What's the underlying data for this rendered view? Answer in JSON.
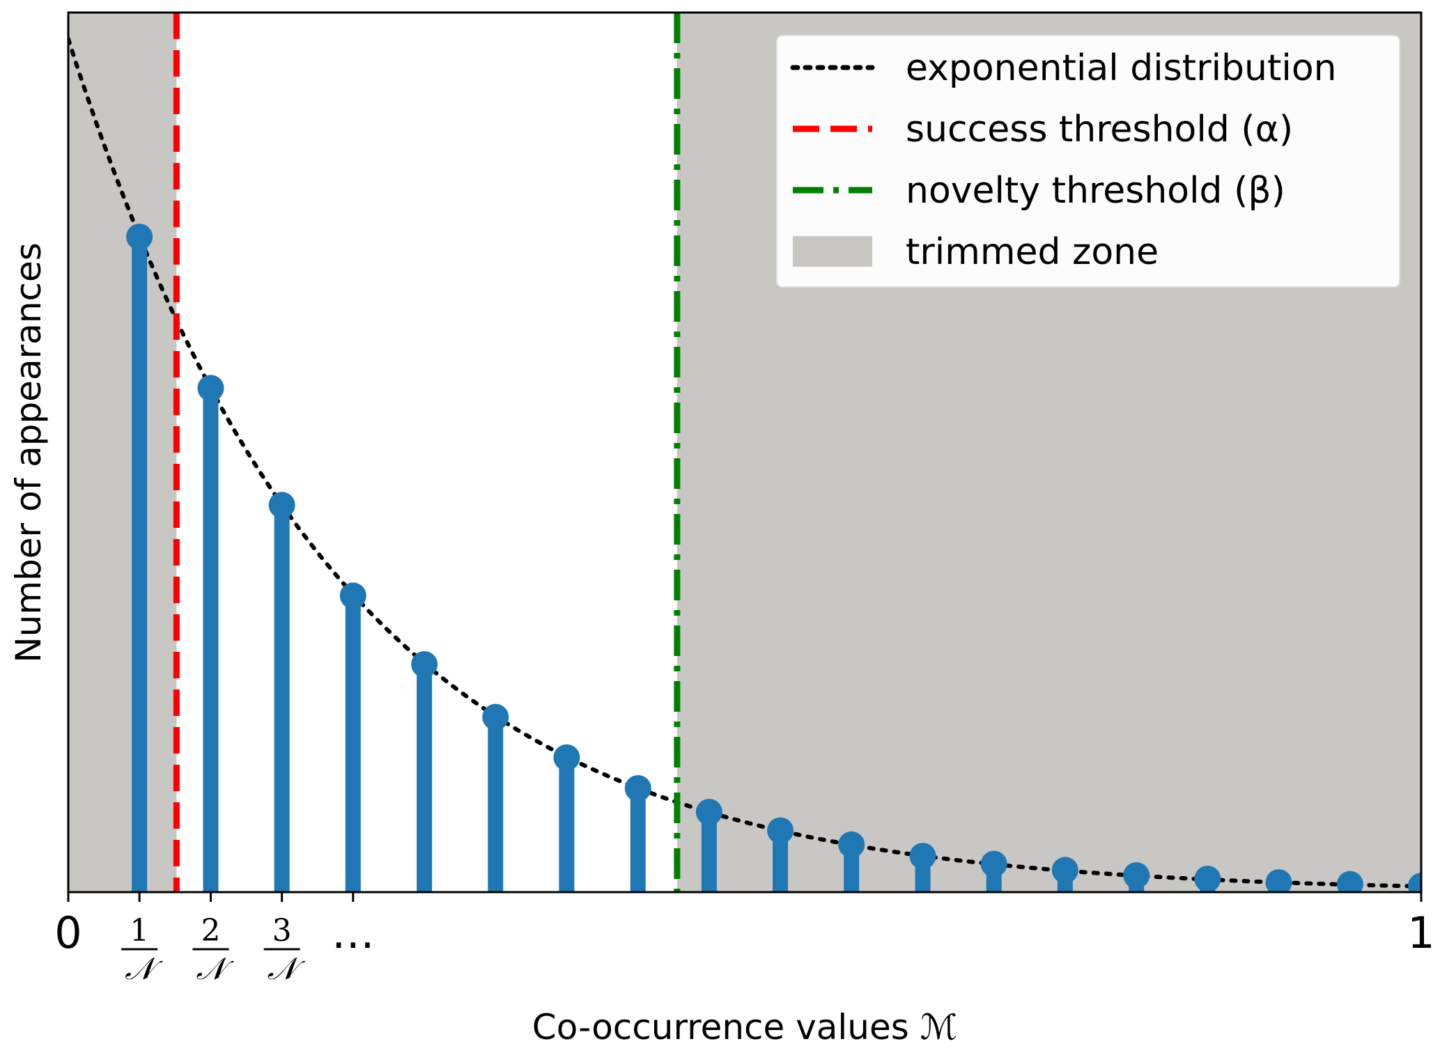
{
  "chart_data": {
    "type": "bar",
    "subtype": "stem",
    "title": "",
    "xlabel": "Co-occurrence values ℳ",
    "ylabel": "Number of appearances",
    "xlim": [
      0,
      1
    ],
    "ylim": [
      0,
      1
    ],
    "y_ticks_visible": false,
    "x_ticks": [
      {
        "value": 0,
        "label": "0",
        "kind": "plain"
      },
      {
        "value": 0.0526,
        "numerator": "1",
        "denominator": "𝒩",
        "kind": "fraction"
      },
      {
        "value": 0.1053,
        "numerator": "2",
        "denominator": "𝒩",
        "kind": "fraction"
      },
      {
        "value": 0.1579,
        "numerator": "3",
        "denominator": "𝒩",
        "kind": "fraction"
      },
      {
        "value": 0.2105,
        "label": "…",
        "kind": "plain"
      },
      {
        "value": 1,
        "label": "1",
        "kind": "plain"
      }
    ],
    "stems": {
      "name": "appearances",
      "color": "#1f77b4",
      "x": [
        0.0526,
        0.1053,
        0.1579,
        0.2105,
        0.2632,
        0.3158,
        0.3684,
        0.4211,
        0.4737,
        0.5263,
        0.5789,
        0.6316,
        0.6842,
        0.7368,
        0.7895,
        0.8421,
        0.8947,
        0.9474,
        1.0
      ],
      "y": [
        0.745,
        0.573,
        0.44,
        0.337,
        0.259,
        0.199,
        0.153,
        0.118,
        0.091,
        0.07,
        0.054,
        0.041,
        0.032,
        0.025,
        0.019,
        0.015,
        0.011,
        0.009,
        0.007
      ]
    },
    "curve": {
      "name": "exponential distribution",
      "function": "y = a * exp(-b * x)",
      "a": 0.97,
      "b": 5.0,
      "color": "#000000",
      "style": "dotted"
    },
    "thresholds": [
      {
        "name": "success threshold (α)",
        "x": 0.08,
        "color": "#ff0000",
        "style": "dashed"
      },
      {
        "name": "novelty threshold (β)",
        "x": 0.45,
        "color": "#008000",
        "style": "dashdot"
      }
    ],
    "trimmed_zones": [
      {
        "from": 0,
        "to": 0.08
      },
      {
        "from": 0.45,
        "to": 1
      }
    ],
    "trimmed_color": "#c8c7c4",
    "legend": {
      "placement": "top-right",
      "entries": [
        {
          "label": "exponential distribution",
          "marker": "dotted-line",
          "color": "#000000"
        },
        {
          "label": "success threshold (α)",
          "marker": "dashed-line",
          "color": "#ff0000"
        },
        {
          "label": "novelty threshold (β)",
          "marker": "dashdot-line",
          "color": "#008000"
        },
        {
          "label": "trimmed zone",
          "marker": "patch",
          "color": "#c8c7c4"
        }
      ]
    }
  }
}
